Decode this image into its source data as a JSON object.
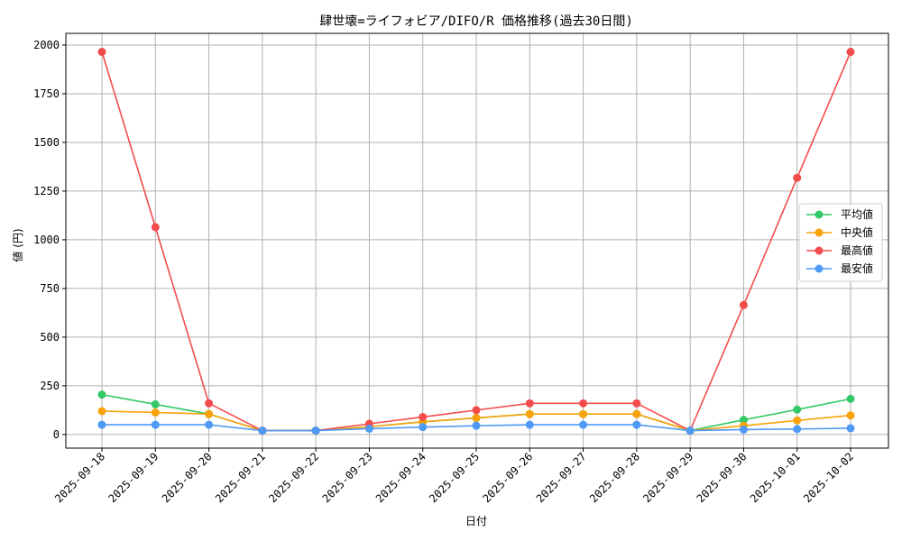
{
  "chart_data": {
    "type": "line",
    "title": "肆世壊=ライフォビア/DIFO/R 価格推移(過去30日間)",
    "xlabel": "日付",
    "ylabel": "値 (円)",
    "ylim": [
      -70,
      2060
    ],
    "yticks": [
      0,
      250,
      500,
      750,
      1000,
      1250,
      1500,
      1750,
      2000
    ],
    "grid": true,
    "legend_position": "center-right",
    "categories": [
      "2025-09-18",
      "2025-09-19",
      "2025-09-20",
      "2025-09-21",
      "2025-09-22",
      "2025-09-23",
      "2025-09-24",
      "2025-09-25",
      "2025-09-26",
      "2025-09-27",
      "2025-09-28",
      "2025-09-29",
      "2025-09-30",
      "2025-10-01",
      "2025-10-02"
    ],
    "series": [
      {
        "name": "平均値",
        "color": "#33c866",
        "values": [
          205,
          155,
          105,
          20,
          20,
          40,
          65,
          85,
          105,
          105,
          105,
          20,
          75,
          128,
          183
        ]
      },
      {
        "name": "中央値",
        "color": "#f9a20b",
        "values": [
          120,
          113,
          105,
          20,
          20,
          40,
          65,
          85,
          105,
          105,
          105,
          20,
          45,
          72,
          98
        ]
      },
      {
        "name": "最高値",
        "color": "#f34c4c",
        "values": [
          1965,
          1065,
          160,
          20,
          20,
          55,
          90,
          125,
          160,
          160,
          160,
          20,
          665,
          1318,
          1965
        ]
      },
      {
        "name": "最安値",
        "color": "#4f9af4",
        "values": [
          50,
          50,
          50,
          20,
          20,
          30,
          38,
          45,
          50,
          50,
          50,
          20,
          25,
          28,
          32
        ]
      }
    ]
  }
}
